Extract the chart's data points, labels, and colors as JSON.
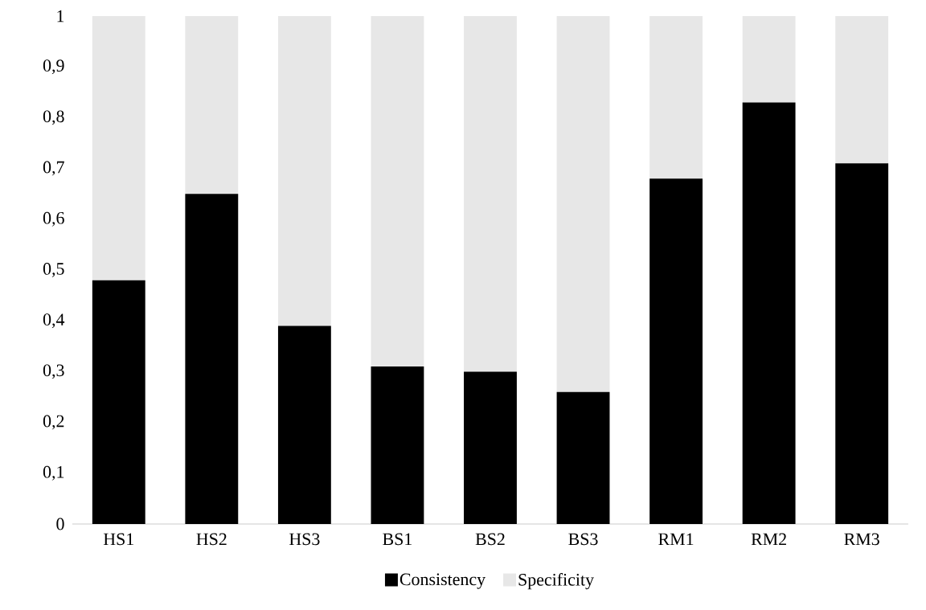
{
  "chart_data": {
    "type": "bar",
    "stacked": true,
    "categories": [
      "HS1",
      "HS2",
      "HS3",
      "BS1",
      "BS2",
      "BS3",
      "RM1",
      "RM2",
      "RM3"
    ],
    "series": [
      {
        "name": "Consistency",
        "color": "#000000",
        "values": [
          0.48,
          0.65,
          0.39,
          0.31,
          0.3,
          0.26,
          0.68,
          0.83,
          0.71
        ]
      },
      {
        "name": "Specificity",
        "color": "#e7e7e7",
        "values": [
          0.52,
          0.35,
          0.61,
          0.69,
          0.7,
          0.74,
          0.32,
          0.17,
          0.29
        ]
      }
    ],
    "ylim": [
      0,
      1
    ],
    "yticks": [
      0,
      {
        "value": 0.1,
        "label": "0,1"
      },
      {
        "value": 0.2,
        "label": "0,2"
      },
      {
        "value": 0.3,
        "label": "0,3"
      },
      {
        "value": 0.4,
        "label": "0,4"
      },
      {
        "value": 0.5,
        "label": "0,5"
      },
      {
        "value": 0.6,
        "label": "0,6"
      },
      {
        "value": 0.7,
        "label": "0,7"
      },
      {
        "value": 0.8,
        "label": "0,8"
      },
      {
        "value": 0.9,
        "label": "0,9"
      },
      1
    ],
    "legend": "bottom"
  }
}
